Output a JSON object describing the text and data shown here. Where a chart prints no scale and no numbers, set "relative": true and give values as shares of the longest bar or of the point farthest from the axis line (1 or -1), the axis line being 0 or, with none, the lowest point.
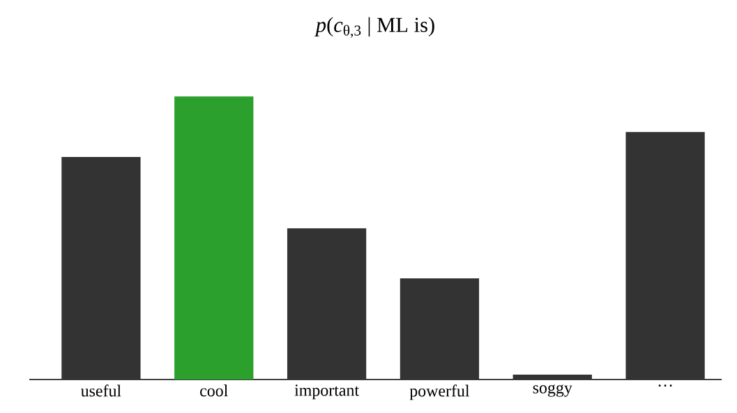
{
  "chart_data": {
    "type": "bar",
    "title": "*p*(*c*$_{θ,3}$ | ML is)",
    "categories": [
      "useful",
      "cool",
      "important",
      "powerful",
      "soggy",
      "···"
    ],
    "values": [
      0.786,
      1,
      0.534,
      0.357,
      0.017,
      0.874
    ],
    "colors": [
      "#333333",
      "#2ca02c",
      "#333333",
      "#333333",
      "#333333",
      "#333333"
    ],
    "relative": true
  }
}
